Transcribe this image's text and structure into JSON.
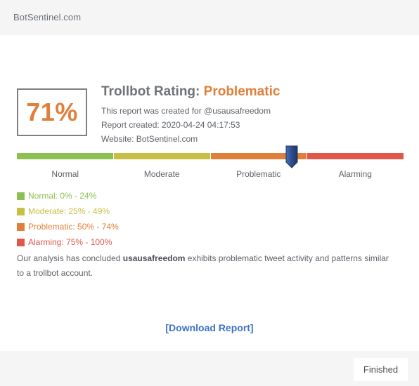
{
  "header": {
    "site_name": "BotSentinel.com"
  },
  "report": {
    "score": "71%",
    "title_prefix": "Trollbot Rating: ",
    "rating": "Problematic",
    "created_for": "This report was created for @usausafreedom",
    "created_at": "Report created: 2020-04-24 04:17:53",
    "website": "Website: BotSentinel.com",
    "score_value": 71
  },
  "bar": {
    "segments": [
      {
        "label": "Normal",
        "color": "#8cc152"
      },
      {
        "label": "Moderate",
        "color": "#c8bf45"
      },
      {
        "label": "Problematic",
        "color": "#e07f3a"
      },
      {
        "label": "Alarming",
        "color": "#e0584a"
      }
    ],
    "marker_color": "#2e4a8a"
  },
  "legend": [
    {
      "text": "Normal: 0% - 24%",
      "color": "#8cc152"
    },
    {
      "text": "Moderate: 25% - 49%",
      "color": "#c8bf45"
    },
    {
      "text": "Problematic: 50% - 74%",
      "color": "#e07f3a"
    },
    {
      "text": "Alarming: 75% - 100%",
      "color": "#e0584a"
    }
  ],
  "summary": {
    "prefix": "Our analysis has concluded ",
    "account": "usausafreedom",
    "suffix": " exhibits problematic tweet activity and patterns similar to a trollbot account."
  },
  "download": {
    "label": "[Download Report]"
  },
  "footer": {
    "finished_label": "Finished"
  }
}
